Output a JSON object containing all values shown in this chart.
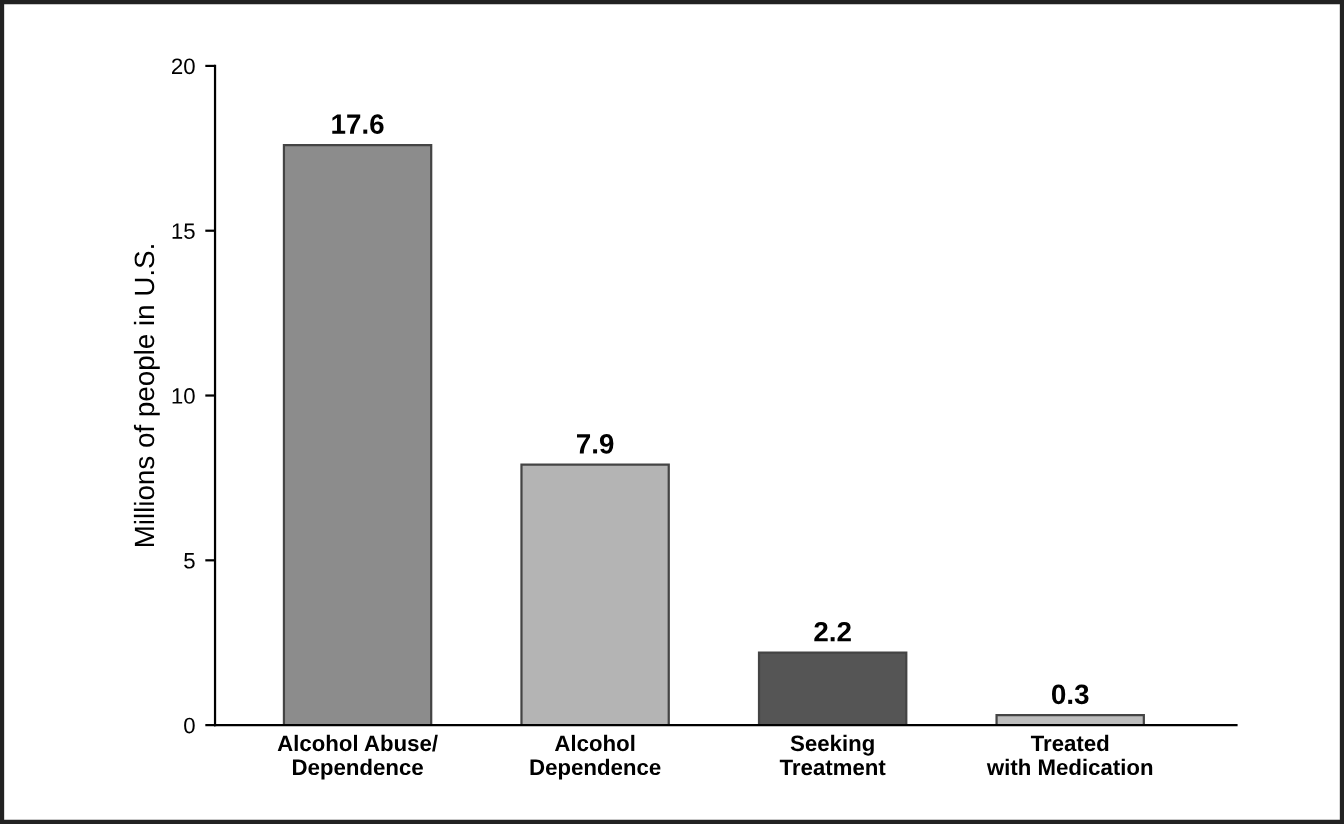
{
  "chart_data": {
    "type": "bar",
    "ylabel": "Millions of people in U.S.",
    "categories": [
      "Alcohol Abuse/\nDependence",
      "Alcohol\nDependence",
      "Seeking\nTreatment",
      "Treated\nwith Medication"
    ],
    "values": [
      17.6,
      7.9,
      2.2,
      0.3
    ],
    "colors": [
      "#8c8c8c",
      "#b4b4b4",
      "#555555",
      "#bdbdbd"
    ],
    "ylim": [
      0,
      20
    ],
    "yticks": [
      0,
      5,
      10,
      15,
      20
    ],
    "data_labels": true,
    "grid": false
  }
}
